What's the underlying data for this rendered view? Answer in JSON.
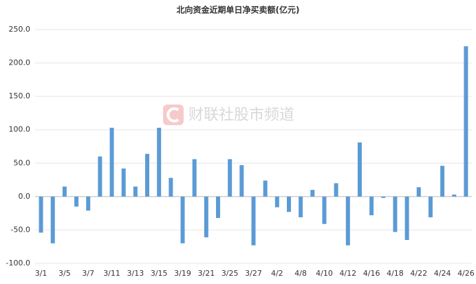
{
  "chart_data": {
    "type": "bar",
    "title": "北向资金近期单日净买卖额(亿元)",
    "watermark": "财联社股市频道",
    "categories": [
      "3/1",
      null,
      "3/5",
      null,
      "3/7",
      null,
      "3/11",
      null,
      "3/13",
      null,
      "3/15",
      null,
      "3/19",
      null,
      "3/21",
      null,
      "3/25",
      null,
      "3/27",
      null,
      "4/2",
      null,
      "4/8",
      null,
      "4/10",
      null,
      "4/12",
      null,
      "4/16",
      null,
      "4/18",
      null,
      "4/22",
      null,
      "4/24",
      null,
      "4/26"
    ],
    "values": [
      -54,
      -70,
      15,
      -15,
      -21,
      60,
      103,
      42,
      15,
      64,
      103,
      28,
      -70,
      56,
      -61,
      -32,
      56,
      47,
      -73,
      24,
      -16,
      -23,
      -31,
      10,
      -41,
      20,
      -73,
      81,
      -28,
      -2,
      -53,
      -65,
      14,
      -31,
      46,
      3,
      225
    ],
    "color": "#5b9bd5",
    "ylim": [
      -100,
      250
    ],
    "yticks": [
      {
        "value": -100,
        "label": "-100.0"
      },
      {
        "value": -50,
        "label": "-50.0"
      },
      {
        "value": 0,
        "label": "0.0"
      },
      {
        "value": 50,
        "label": "50.0"
      },
      {
        "value": 100,
        "label": "100.0"
      },
      {
        "value": 150,
        "label": "150.0"
      },
      {
        "value": 200,
        "label": "200.0"
      },
      {
        "value": 250,
        "label": "250.0"
      }
    ],
    "grid": true
  }
}
